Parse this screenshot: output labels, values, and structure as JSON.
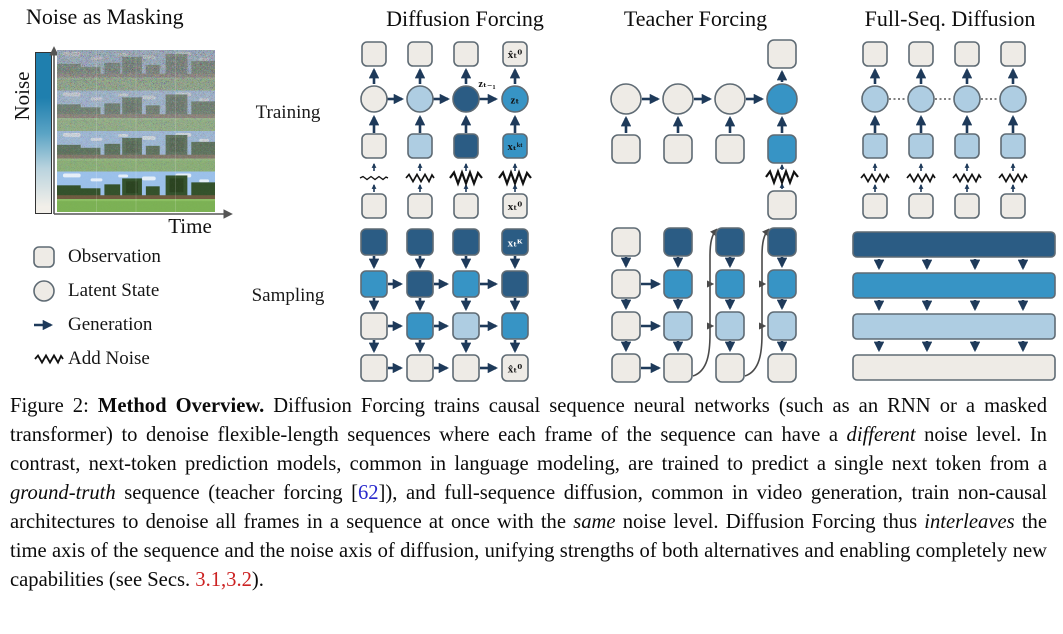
{
  "titles": {
    "masking": "Noise as Masking",
    "diffusion_forcing": "Diffusion Forcing",
    "teacher_forcing": "Teacher Forcing",
    "full_seq": "Full-Seq. Diffusion"
  },
  "masking": {
    "y_axis": "Noise",
    "x_axis": "Time",
    "rows_noise_levels": [
      "full-noise",
      "high-noise",
      "medium-noise",
      "clean"
    ]
  },
  "row_labels": {
    "training": "Training",
    "sampling": "Sampling"
  },
  "legend": {
    "items": [
      {
        "icon": "observation-square-icon",
        "label": "Observation"
      },
      {
        "icon": "latent-state-circle-icon",
        "label": "Latent State"
      },
      {
        "icon": "generation-arrow-icon",
        "label": "Generation"
      },
      {
        "icon": "add-noise-zigzag-icon",
        "label": "Add Noise"
      }
    ]
  },
  "palette": {
    "observation": "#EEEBE6",
    "noise_light": "#AECDE2",
    "noise_mid": "#3794C5",
    "noise_dark": "#2B5C84",
    "arrow_navy": "#1E3A5A",
    "node_border": "#5F6B74",
    "resample_gray": "#4A4A4A",
    "axis_gray": "#555555",
    "citation_blue": "#2929CC",
    "section_red": "#CC2222",
    "noise_bar_gradient": [
      "#1F7FAE",
      "#5AA3C4",
      "#B9D3DE",
      "#F2EFE9"
    ]
  },
  "df": {
    "training": {
      "top_squares": [
        "#EEEBE6",
        "#EEEBE6",
        "#EEEBE6",
        "#EEEBE6"
      ],
      "top_right_label": "x̂ₜ⁰",
      "circles": [
        "#EEEBE6",
        "#AECDE2",
        "#2B5C84",
        "#3794C5"
      ],
      "circle_right_label": "zₜ",
      "edge_label": "zₜ₋₁",
      "mid_squares": [
        "#EEEBE6",
        "#AECDE2",
        "#2B5C84",
        "#3794C5"
      ],
      "mid_right_label": "xₜᵏᵗ",
      "noise_intensity": [
        "low",
        "medium",
        "high",
        "high"
      ],
      "bottom_squares": [
        "#EEEBE6",
        "#EEEBE6",
        "#EEEBE6",
        "#EEEBE6"
      ],
      "bottom_right_label": "xₜ⁰"
    },
    "sampling": {
      "top_right_label": "xₜᴷ",
      "bottom_right_label": "x̂ₜ⁰",
      "grid": [
        [
          "#2B5C84",
          "#2B5C84",
          "#2B5C84",
          "#2B5C84"
        ],
        [
          "#3794C5",
          "#2B5C84",
          "#3794C5",
          "#2B5C84"
        ],
        [
          "#EEEBE6",
          "#3794C5",
          "#AECDE2",
          "#3794C5"
        ],
        [
          "#EEEBE6",
          "#EEEBE6",
          "#EEEBE6",
          "#EEEBE6"
        ]
      ]
    }
  },
  "tf": {
    "training": {
      "circles": [
        "#EEEBE6",
        "#EEEBE6",
        "#EEEBE6",
        "#3794C5"
      ],
      "squares": [
        "#EEEBE6",
        "#EEEBE6",
        "#EEEBE6",
        "#3794C5"
      ],
      "top_square": "#EEEBE6",
      "bottom_square": "#EEEBE6",
      "noise_intensity": [
        "high"
      ]
    },
    "sampling": {
      "grid": [
        [
          "#EEEBE6",
          "#2B5C84",
          "#2B5C84",
          "#2B5C84"
        ],
        [
          "#EEEBE6",
          "#3794C5",
          "#3794C5",
          "#3794C5"
        ],
        [
          "#EEEBE6",
          "#AECDE2",
          "#AECDE2",
          "#AECDE2"
        ],
        [
          "#EEEBE6",
          "#EEEBE6",
          "#EEEBE6",
          "#EEEBE6"
        ]
      ]
    }
  },
  "fs": {
    "training": {
      "top_squares": [
        "#EEEBE6",
        "#EEEBE6",
        "#EEEBE6",
        "#EEEBE6"
      ],
      "circles": [
        "#AECDE2",
        "#AECDE2",
        "#AECDE2",
        "#AECDE2"
      ],
      "mid_squares": [
        "#AECDE2",
        "#AECDE2",
        "#AECDE2",
        "#AECDE2"
      ],
      "bottom_squares": [
        "#EEEBE6",
        "#EEEBE6",
        "#EEEBE6",
        "#EEEBE6"
      ],
      "noise_intensity": [
        "medium",
        "medium",
        "medium",
        "medium"
      ]
    },
    "sampling": {
      "bars": [
        "#2B5C84",
        "#3794C5",
        "#AECDE2",
        "#EEEBE6"
      ]
    }
  },
  "caption": {
    "segments": [
      {
        "text": "Figure 2: ",
        "style": "normal"
      },
      {
        "text": "Method Overview.",
        "style": "bold"
      },
      {
        "text": " Diffusion Forcing trains causal sequence neural networks (such as an RNN or a masked transformer) to denoise flexible-length sequences where each frame of the sequence can have a ",
        "style": "normal"
      },
      {
        "text": "different",
        "style": "italic"
      },
      {
        "text": " noise level. In contrast, next-token prediction models, common in language modeling, are trained to predict a single next token from a ",
        "style": "normal"
      },
      {
        "text": "ground-truth",
        "style": "italic"
      },
      {
        "text": " sequence (teacher forcing [",
        "style": "normal"
      },
      {
        "text": "62",
        "style": "cite"
      },
      {
        "text": "]), and full-sequence diffusion, common in video generation, train non-causal architectures to denoise all frames in a sequence at once with the ",
        "style": "normal"
      },
      {
        "text": "same",
        "style": "italic"
      },
      {
        "text": " noise level. Diffusion Forcing thus ",
        "style": "normal"
      },
      {
        "text": "interleaves",
        "style": "italic"
      },
      {
        "text": " the time axis of the sequence and the noise axis of diffusion, unifying strengths of both alternatives and enabling completely new capabilities (see Secs. ",
        "style": "normal"
      },
      {
        "text": "3.1,3.2",
        "style": "ref"
      },
      {
        "text": ").",
        "style": "normal"
      }
    ]
  }
}
